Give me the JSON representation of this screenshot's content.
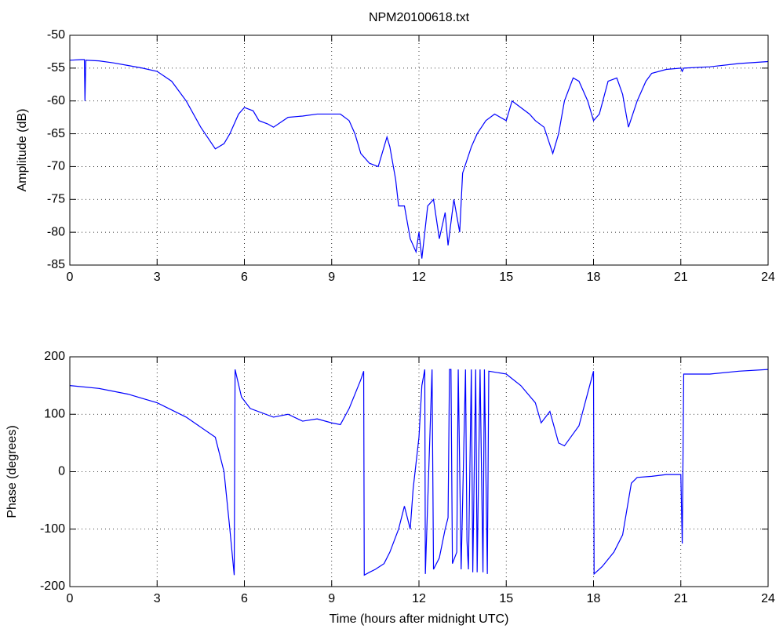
{
  "chart_data": [
    {
      "type": "line",
      "title": "NPM20100618.txt",
      "ylabel": "Amplitude (dB)",
      "color": "#0000ff",
      "grid": true,
      "xlim": [
        0,
        24
      ],
      "xticks": [
        0,
        3,
        6,
        9,
        12,
        15,
        18,
        21,
        24
      ],
      "ylim": [
        -85,
        -50
      ],
      "yticks": [
        -85,
        -80,
        -75,
        -70,
        -65,
        -60,
        -55,
        -50
      ],
      "x": [
        0,
        0.4,
        0.5,
        0.52,
        0.55,
        1,
        1.5,
        2,
        2.5,
        3,
        3.5,
        4,
        4.5,
        5,
        5.3,
        5.5,
        5.8,
        6,
        6.3,
        6.5,
        6.8,
        7,
        7.5,
        8,
        8.5,
        9,
        9.3,
        9.6,
        9.8,
        10,
        10.3,
        10.6,
        10.9,
        11,
        11.2,
        11.3,
        11.5,
        11.7,
        11.9,
        12,
        12.1,
        12.3,
        12.5,
        12.7,
        12.9,
        13,
        13.2,
        13.4,
        13.5,
        13.8,
        14,
        14.3,
        14.6,
        15,
        15.2,
        15.5,
        15.8,
        16,
        16.3,
        16.6,
        16.8,
        17,
        17.3,
        17.5,
        17.8,
        18,
        18.2,
        18.5,
        18.8,
        19,
        19.2,
        19.5,
        19.8,
        20,
        20.5,
        21,
        21.05,
        21.1,
        22,
        23,
        24
      ],
      "values": [
        -53.8,
        -53.7,
        -53.7,
        -60,
        -53.8,
        -53.9,
        -54.2,
        -54.6,
        -55,
        -55.5,
        -57,
        -60,
        -64,
        -67.3,
        -66.5,
        -65,
        -62,
        -61,
        -61.5,
        -63,
        -63.5,
        -64,
        -62.5,
        -62.3,
        -62,
        -62,
        -62,
        -63,
        -65,
        -68,
        -69.5,
        -70,
        -65.5,
        -67,
        -72,
        -76,
        -76,
        -81,
        -83,
        -80,
        -84,
        -76,
        -75,
        -81,
        -77,
        -82,
        -75,
        -80,
        -71,
        -67,
        -65,
        -63,
        -62,
        -63,
        -60,
        -61,
        -62,
        -63,
        -64,
        -68,
        -65,
        -60,
        -56.5,
        -57,
        -60,
        -63,
        -62,
        -57,
        -56.5,
        -59,
        -64,
        -60,
        -57,
        -55.8,
        -55.2,
        -55,
        -55.5,
        -55,
        -54.8,
        -54.3,
        -54
      ]
    },
    {
      "type": "line",
      "ylabel": "Phase (degrees)",
      "xlabel": "Time (hours after midnight UTC)",
      "color": "#0000ff",
      "grid": true,
      "xlim": [
        0,
        24
      ],
      "xticks": [
        0,
        3,
        6,
        9,
        12,
        15,
        18,
        21,
        24
      ],
      "ylim": [
        -200,
        200
      ],
      "yticks": [
        -200,
        -100,
        0,
        100,
        200
      ],
      "x": [
        0,
        1,
        2,
        3,
        4,
        5,
        5.3,
        5.5,
        5.65,
        5.68,
        5.9,
        6.2,
        7,
        7.5,
        8,
        8.5,
        9,
        9.3,
        9.6,
        10,
        10.1,
        10.12,
        10.3,
        10.5,
        10.8,
        11,
        11.3,
        11.5,
        11.7,
        11.8,
        12,
        12.1,
        12.2,
        12.22,
        12.45,
        12.5,
        12.7,
        12.9,
        13,
        13.05,
        13.1,
        13.15,
        13.3,
        13.35,
        13.45,
        13.6,
        13.65,
        13.7,
        13.8,
        13.85,
        13.95,
        14,
        14.1,
        14.2,
        14.25,
        14.35,
        14.4,
        15,
        15.5,
        16,
        16.2,
        16.5,
        16.8,
        17,
        17.5,
        18,
        18.02,
        18.3,
        18.7,
        19,
        19.3,
        19.5,
        20,
        20.5,
        21,
        21.05,
        21.1,
        22,
        23,
        24
      ],
      "values": [
        150,
        145,
        135,
        120,
        95,
        60,
        0,
        -100,
        -180,
        178,
        130,
        110,
        95,
        100,
        88,
        92,
        85,
        82,
        110,
        160,
        175,
        -180,
        -175,
        -170,
        -160,
        -140,
        -100,
        -60,
        -100,
        -30,
        60,
        150,
        178,
        -178,
        178,
        -170,
        -150,
        -100,
        -80,
        178,
        178,
        -160,
        -140,
        178,
        -170,
        178,
        -120,
        -170,
        178,
        -175,
        178,
        -175,
        178,
        -175,
        178,
        -178,
        175,
        170,
        150,
        120,
        85,
        105,
        50,
        45,
        80,
        175,
        -178,
        -165,
        -140,
        -110,
        -20,
        -10,
        -8,
        -5,
        -5,
        -125,
        170,
        170,
        175,
        178
      ]
    }
  ]
}
